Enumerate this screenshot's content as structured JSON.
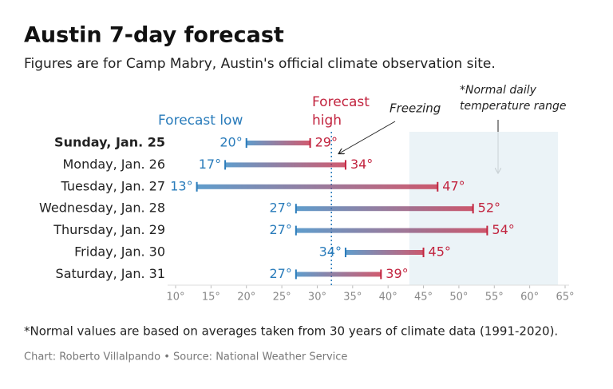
{
  "chart_data": {
    "type": "range",
    "title": "Austin 7-day forecast",
    "subtitle": "Figures are for Camp Mabry, Austin's official climate observation site.",
    "categories": [
      "Sunday, Jan. 25",
      "Monday, Jan. 26",
      "Tuesday, Jan. 27",
      "Wednesday, Jan. 28",
      "Thursday, Jan. 29",
      "Friday, Jan. 30",
      "Saturday, Jan. 31"
    ],
    "highlight_index": 0,
    "series": [
      {
        "name": "Forecast low",
        "color": "#2a7cbb",
        "values": [
          20,
          17,
          13,
          27,
          27,
          34,
          27
        ],
        "value_labels": [
          "20°",
          "17°",
          "13°",
          "27°",
          "27°",
          "34°",
          "27°"
        ]
      },
      {
        "name": "Forecast high",
        "color": "#c2243f",
        "values": [
          29,
          34,
          47,
          52,
          54,
          45,
          39
        ],
        "value_labels": [
          "29°",
          "34°",
          "47°",
          "52°",
          "54°",
          "45°",
          "39°"
        ]
      }
    ],
    "xlim": [
      8,
      66
    ],
    "xticks": [
      {
        "value": 10,
        "label": "10°"
      },
      {
        "value": 15,
        "label": "15°"
      },
      {
        "value": 20,
        "label": "20°"
      },
      {
        "value": 25,
        "label": "25°"
      },
      {
        "value": 30,
        "label": "30°"
      },
      {
        "value": 35,
        "label": "35°"
      },
      {
        "value": 40,
        "label": "40°"
      },
      {
        "value": 45,
        "label": "45°"
      },
      {
        "value": 50,
        "label": "50°"
      },
      {
        "value": 55,
        "label": "55°"
      },
      {
        "value": 60,
        "label": "60°"
      },
      {
        "value": 65,
        "label": "65°"
      }
    ],
    "freezing": {
      "value": 32,
      "label": "Freezing"
    },
    "normal_range": {
      "values": [
        43,
        64
      ],
      "label": "*Normal daily temperature range"
    },
    "footnote": "*Normal values are based on averages taken from 30 years of climate data (1991-2020).",
    "source": "Chart: Roberto Villalpando • Source: National Weather Service"
  }
}
